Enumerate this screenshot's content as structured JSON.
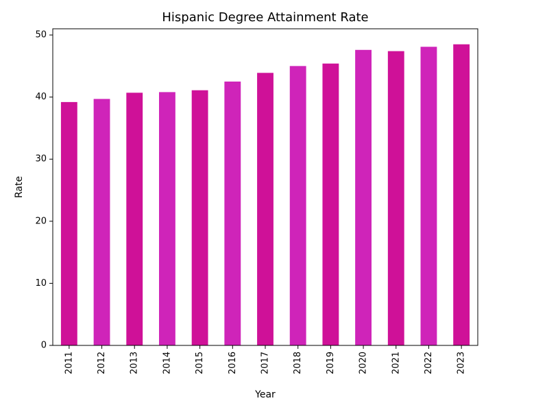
{
  "chart_data": {
    "type": "bar",
    "title": "Hispanic Degree Attainment Rate",
    "xlabel": "Year",
    "ylabel": "Rate",
    "categories": [
      "2011",
      "2012",
      "2013",
      "2014",
      "2015",
      "2016",
      "2017",
      "2018",
      "2019",
      "2020",
      "2021",
      "2022",
      "2023"
    ],
    "values": [
      39.2,
      39.7,
      40.7,
      40.8,
      41.1,
      42.5,
      43.9,
      45.0,
      45.4,
      47.6,
      47.4,
      48.1,
      48.5
    ],
    "ylim": [
      0,
      51
    ],
    "yticks": [
      "0",
      "10",
      "20",
      "30",
      "40",
      "50"
    ],
    "grid": false,
    "legend": "none",
    "colors": [
      "#cf1198",
      "#cf24b9"
    ]
  }
}
